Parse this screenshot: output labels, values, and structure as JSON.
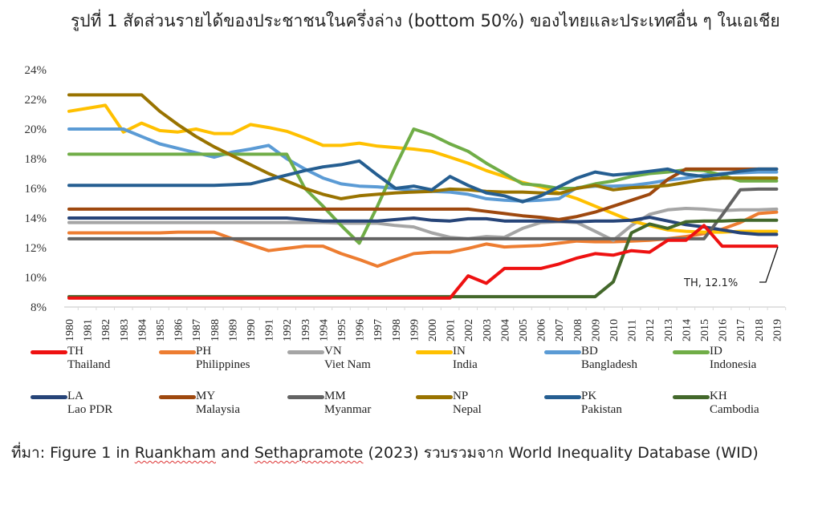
{
  "title": "รูปที่ 1 สัดส่วนรายได้ของประชาชนในครึ่งล่าง (bottom 50%)  ของไทยและประเทศอื่น ๆ ในเอเชีย",
  "source": {
    "prefix": "ที่มา: Figure 1 in ",
    "author1": "Ruankham",
    "mid": " and ",
    "author2": "Sethapramote",
    "suffix": " (2023) รวบรวมจาก  World Inequality Database (WID)"
  },
  "annotation": {
    "text": "TH, 12.1%"
  },
  "chart_data": {
    "type": "line",
    "title": "รูปที่ 1 สัดส่วนรายได้ของประชาชนในครึ่งล่าง (bottom 50%) ของไทยและประเทศอื่น ๆ ในเอเชีย",
    "xlabel": "",
    "ylabel": "",
    "ylim": [
      8,
      24
    ],
    "yticks": [
      "8%",
      "10%",
      "12%",
      "14%",
      "16%",
      "18%",
      "20%",
      "22%",
      "24%"
    ],
    "grid": false,
    "legend_position": "bottom",
    "x": [
      1980,
      1981,
      1982,
      1983,
      1984,
      1985,
      1986,
      1987,
      1988,
      1989,
      1990,
      1991,
      1992,
      1993,
      1994,
      1995,
      1996,
      1997,
      1998,
      1999,
      2000,
      2001,
      2002,
      2003,
      2004,
      2005,
      2006,
      2007,
      2008,
      2009,
      2010,
      2011,
      2012,
      2013,
      2014,
      2015,
      2016,
      2017,
      2018,
      2019
    ],
    "series": [
      {
        "code": "TH",
        "name": "Thailand",
        "color": "#ee1111",
        "values": [
          8.6,
          8.6,
          8.6,
          8.6,
          8.6,
          8.6,
          8.6,
          8.6,
          8.6,
          8.6,
          8.6,
          8.6,
          8.6,
          8.6,
          8.6,
          8.6,
          8.6,
          8.6,
          8.6,
          8.6,
          8.6,
          8.6,
          10.1,
          9.6,
          10.6,
          10.6,
          10.6,
          10.9,
          11.3,
          11.6,
          11.5,
          11.8,
          11.7,
          12.5,
          12.5,
          13.5,
          12.1,
          12.1,
          12.1,
          12.1
        ]
      },
      {
        "code": "PH",
        "name": "Philippines",
        "color": "#ed7d31",
        "values": [
          13.0,
          13.0,
          13.0,
          13.0,
          13.0,
          13.0,
          13.05,
          13.05,
          13.05,
          12.6,
          12.2,
          11.8,
          11.95,
          12.1,
          12.1,
          11.6,
          11.2,
          10.75,
          11.2,
          11.6,
          11.7,
          11.7,
          11.95,
          12.25,
          12.05,
          12.1,
          12.15,
          12.3,
          12.45,
          12.4,
          12.4,
          12.45,
          12.5,
          12.6,
          12.75,
          12.95,
          13.25,
          13.7,
          14.3,
          14.4
        ]
      },
      {
        "code": "VN",
        "name": "Viet Nam",
        "color": "#a5a5a5",
        "values": [
          13.7,
          13.7,
          13.7,
          13.7,
          13.7,
          13.7,
          13.7,
          13.7,
          13.7,
          13.7,
          13.7,
          13.7,
          13.7,
          13.7,
          13.7,
          13.65,
          13.65,
          13.65,
          13.5,
          13.4,
          13.0,
          12.7,
          12.6,
          12.75,
          12.7,
          13.3,
          13.7,
          13.75,
          13.7,
          13.1,
          12.5,
          13.5,
          14.25,
          14.55,
          14.65,
          14.6,
          14.5,
          14.55,
          14.55,
          14.6
        ]
      },
      {
        "code": "IN",
        "name": "India",
        "color": "#ffc000",
        "values": [
          21.2,
          21.4,
          21.6,
          19.8,
          20.4,
          19.9,
          19.8,
          20.0,
          19.7,
          19.7,
          20.3,
          20.1,
          19.85,
          19.4,
          18.9,
          18.9,
          19.05,
          18.85,
          18.75,
          18.65,
          18.5,
          18.1,
          17.7,
          17.2,
          16.8,
          16.4,
          16.1,
          15.7,
          15.3,
          14.8,
          14.3,
          13.8,
          13.5,
          13.2,
          13.1,
          13.05,
          13.05,
          13.1,
          13.1,
          13.1
        ]
      },
      {
        "code": "BD",
        "name": "Bangladesh",
        "color": "#5b9bd5",
        "values": [
          20.0,
          20.0,
          20.0,
          20.0,
          19.5,
          19.0,
          18.7,
          18.4,
          18.1,
          18.45,
          18.65,
          18.9,
          18.0,
          17.3,
          16.7,
          16.3,
          16.15,
          16.1,
          16.0,
          15.85,
          15.8,
          15.75,
          15.6,
          15.3,
          15.2,
          15.15,
          15.2,
          15.3,
          16.05,
          16.15,
          16.15,
          16.2,
          16.35,
          16.55,
          16.7,
          16.9,
          17.0,
          17.05,
          17.1,
          17.1
        ]
      },
      {
        "code": "ID",
        "name": "Indonesia",
        "color": "#70ad47",
        "values": [
          18.3,
          18.3,
          18.3,
          18.3,
          18.3,
          18.3,
          18.3,
          18.3,
          18.3,
          18.3,
          18.3,
          18.3,
          18.3,
          16.0,
          14.8,
          13.5,
          12.3,
          14.8,
          17.5,
          20.0,
          19.6,
          19.0,
          18.5,
          17.7,
          17.0,
          16.3,
          16.2,
          16.0,
          16.0,
          16.3,
          16.5,
          16.8,
          17.0,
          17.1,
          17.25,
          17.2,
          16.9,
          16.5,
          16.5,
          16.5
        ]
      },
      {
        "code": "LA",
        "name": "Lao PDR",
        "color": "#264478",
        "values": [
          14.0,
          14.0,
          14.0,
          14.0,
          14.0,
          14.0,
          14.0,
          14.0,
          14.0,
          14.0,
          14.0,
          14.0,
          14.0,
          13.9,
          13.8,
          13.8,
          13.8,
          13.8,
          13.9,
          14.0,
          13.85,
          13.8,
          13.95,
          13.95,
          13.8,
          13.8,
          13.8,
          13.8,
          13.75,
          13.8,
          13.8,
          13.85,
          14.05,
          13.8,
          13.55,
          13.4,
          13.2,
          13.0,
          12.9,
          12.9
        ]
      },
      {
        "code": "MY",
        "name": "Malaysia",
        "color": "#9e480e",
        "values": [
          14.6,
          14.6,
          14.6,
          14.6,
          14.6,
          14.6,
          14.6,
          14.6,
          14.6,
          14.6,
          14.6,
          14.6,
          14.6,
          14.6,
          14.6,
          14.6,
          14.6,
          14.6,
          14.6,
          14.6,
          14.6,
          14.6,
          14.6,
          14.45,
          14.3,
          14.15,
          14.05,
          13.9,
          14.1,
          14.4,
          14.8,
          15.2,
          15.6,
          16.6,
          17.3,
          17.3,
          17.3,
          17.3,
          17.3,
          17.3
        ]
      },
      {
        "code": "MM",
        "name": "Myanmar",
        "color": "#636363",
        "values": [
          12.6,
          12.6,
          12.6,
          12.6,
          12.6,
          12.6,
          12.6,
          12.6,
          12.6,
          12.6,
          12.6,
          12.6,
          12.6,
          12.6,
          12.6,
          12.6,
          12.6,
          12.6,
          12.6,
          12.6,
          12.6,
          12.6,
          12.6,
          12.6,
          12.6,
          12.6,
          12.6,
          12.6,
          12.6,
          12.6,
          12.6,
          12.6,
          12.6,
          12.6,
          12.6,
          12.6,
          14.2,
          15.9,
          15.95,
          15.95
        ]
      },
      {
        "code": "NP",
        "name": "Nepal",
        "color": "#997300",
        "values": [
          22.3,
          22.3,
          22.3,
          22.3,
          22.3,
          21.2,
          20.3,
          19.5,
          18.8,
          18.2,
          17.6,
          17.0,
          16.5,
          16.0,
          15.6,
          15.3,
          15.5,
          15.6,
          15.7,
          15.75,
          15.8,
          15.95,
          15.9,
          15.8,
          15.75,
          15.75,
          15.7,
          15.65,
          16.0,
          16.2,
          15.9,
          16.05,
          16.1,
          16.2,
          16.4,
          16.6,
          16.7,
          16.7,
          16.7,
          16.7
        ]
      },
      {
        "code": "PK",
        "name": "Pakistan",
        "color": "#255e91",
        "values": [
          16.2,
          16.2,
          16.2,
          16.2,
          16.2,
          16.2,
          16.2,
          16.2,
          16.2,
          16.25,
          16.3,
          16.6,
          16.9,
          17.2,
          17.45,
          17.6,
          17.85,
          16.9,
          16.0,
          16.15,
          15.9,
          16.8,
          16.2,
          15.7,
          15.5,
          15.1,
          15.5,
          16.1,
          16.7,
          17.1,
          16.9,
          17.0,
          17.15,
          17.3,
          16.95,
          16.8,
          16.95,
          17.15,
          17.3,
          17.3
        ]
      },
      {
        "code": "KH",
        "name": "Cambodia",
        "color": "#43682b",
        "values": [
          8.7,
          8.7,
          8.7,
          8.7,
          8.7,
          8.7,
          8.7,
          8.7,
          8.7,
          8.7,
          8.7,
          8.7,
          8.7,
          8.7,
          8.7,
          8.7,
          8.7,
          8.7,
          8.7,
          8.7,
          8.7,
          8.7,
          8.7,
          8.7,
          8.7,
          8.7,
          8.7,
          8.7,
          8.7,
          8.7,
          9.7,
          13.0,
          13.6,
          13.3,
          13.75,
          13.8,
          13.8,
          13.85,
          13.85,
          13.85
        ]
      }
    ],
    "annotations": [
      {
        "text": "TH, 12.1%",
        "x": 2019,
        "y": 12.1
      }
    ]
  }
}
